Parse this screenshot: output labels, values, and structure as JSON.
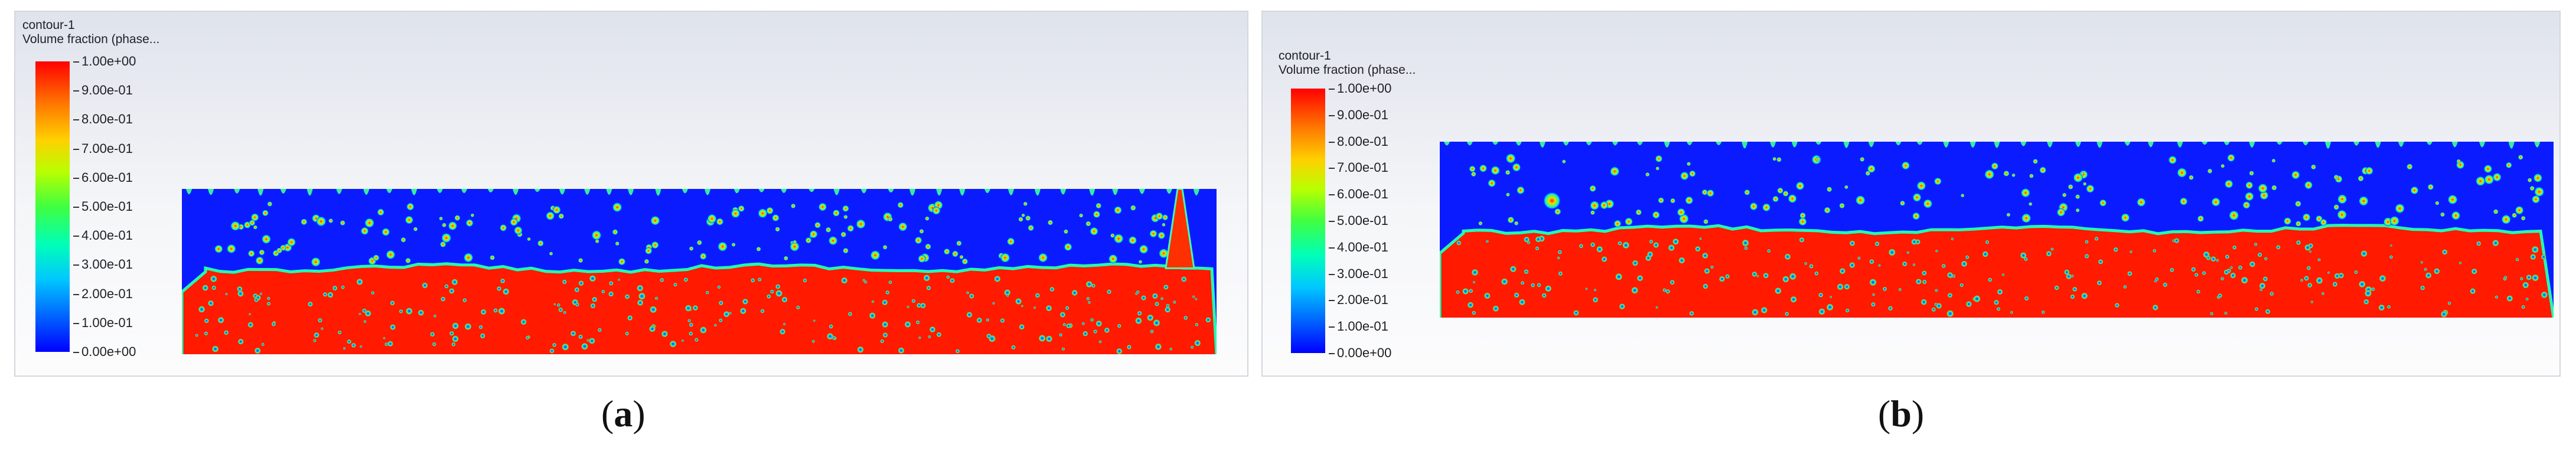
{
  "panels": [
    {
      "id": "a",
      "title_line1": "contour-1",
      "title_line2": "Volume fraction (phase...",
      "colorbar_ticks": [
        "1.00e+00",
        "9.00e-01",
        "8.00e-01",
        "7.00e-01",
        "6.00e-01",
        "5.00e-01",
        "4.00e-01",
        "3.00e-01",
        "2.00e-01",
        "1.00e-01",
        "0.00e+00"
      ],
      "caption_letter": "a"
    },
    {
      "id": "b",
      "title_line1": "contour-1",
      "title_line2": "Volume fraction (phase...",
      "colorbar_ticks": [
        "1.00e+00",
        "9.00e-01",
        "8.00e-01",
        "7.00e-01",
        "6.00e-01",
        "5.00e-01",
        "4.00e-01",
        "3.00e-01",
        "2.00e-01",
        "1.00e-01",
        "0.00e+00"
      ],
      "caption_letter": "b"
    }
  ],
  "colors": {
    "liquid": "#ff1a00",
    "gas": "#0022ff",
    "interface": "#00e0a0"
  }
}
